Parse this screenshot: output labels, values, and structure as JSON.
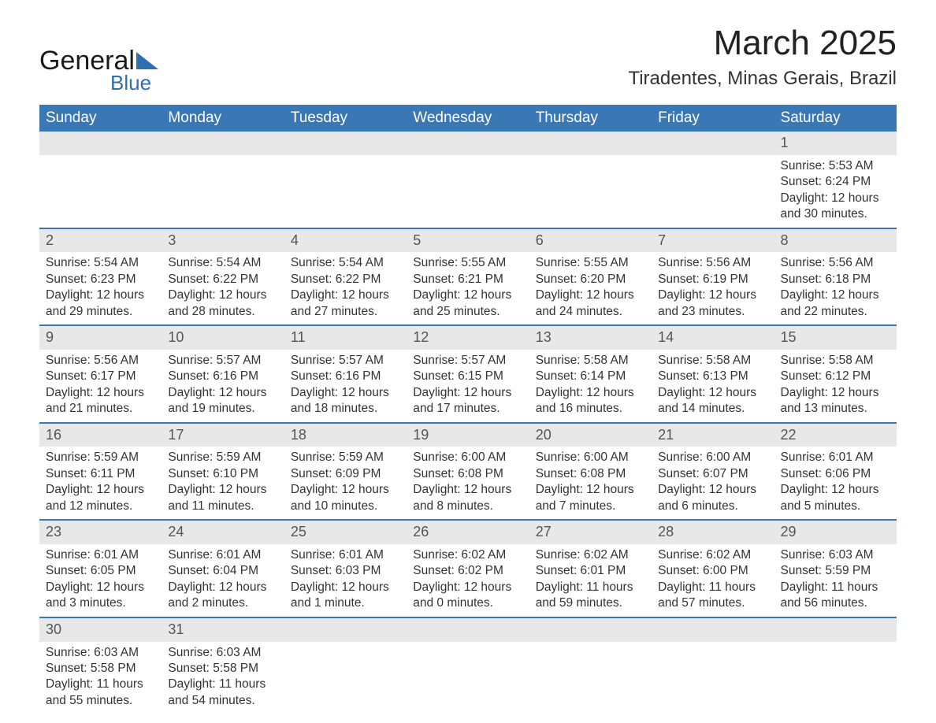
{
  "logo": {
    "brand1": "General",
    "brand2": "Blue"
  },
  "title": "March 2025",
  "location": "Tiradentes, Minas Gerais, Brazil",
  "colors": {
    "header_bg": "#3a78b5",
    "header_text": "#ffffff",
    "row_divider": "#3a78b5",
    "daynum_bg": "#e8e8e8",
    "text": "#333333",
    "logo_accent": "#2f6fb0"
  },
  "fonts": {
    "title_size_pt": 33,
    "location_size_pt": 18,
    "header_size_pt": 14,
    "body_size_pt": 12
  },
  "headers": [
    "Sunday",
    "Monday",
    "Tuesday",
    "Wednesday",
    "Thursday",
    "Friday",
    "Saturday"
  ],
  "weeks": [
    [
      null,
      null,
      null,
      null,
      null,
      null,
      {
        "n": "1",
        "sunrise": "Sunrise: 5:53 AM",
        "sunset": "Sunset: 6:24 PM",
        "day1": "Daylight: 12 hours",
        "day2": "and 30 minutes."
      }
    ],
    [
      {
        "n": "2",
        "sunrise": "Sunrise: 5:54 AM",
        "sunset": "Sunset: 6:23 PM",
        "day1": "Daylight: 12 hours",
        "day2": "and 29 minutes."
      },
      {
        "n": "3",
        "sunrise": "Sunrise: 5:54 AM",
        "sunset": "Sunset: 6:22 PM",
        "day1": "Daylight: 12 hours",
        "day2": "and 28 minutes."
      },
      {
        "n": "4",
        "sunrise": "Sunrise: 5:54 AM",
        "sunset": "Sunset: 6:22 PM",
        "day1": "Daylight: 12 hours",
        "day2": "and 27 minutes."
      },
      {
        "n": "5",
        "sunrise": "Sunrise: 5:55 AM",
        "sunset": "Sunset: 6:21 PM",
        "day1": "Daylight: 12 hours",
        "day2": "and 25 minutes."
      },
      {
        "n": "6",
        "sunrise": "Sunrise: 5:55 AM",
        "sunset": "Sunset: 6:20 PM",
        "day1": "Daylight: 12 hours",
        "day2": "and 24 minutes."
      },
      {
        "n": "7",
        "sunrise": "Sunrise: 5:56 AM",
        "sunset": "Sunset: 6:19 PM",
        "day1": "Daylight: 12 hours",
        "day2": "and 23 minutes."
      },
      {
        "n": "8",
        "sunrise": "Sunrise: 5:56 AM",
        "sunset": "Sunset: 6:18 PM",
        "day1": "Daylight: 12 hours",
        "day2": "and 22 minutes."
      }
    ],
    [
      {
        "n": "9",
        "sunrise": "Sunrise: 5:56 AM",
        "sunset": "Sunset: 6:17 PM",
        "day1": "Daylight: 12 hours",
        "day2": "and 21 minutes."
      },
      {
        "n": "10",
        "sunrise": "Sunrise: 5:57 AM",
        "sunset": "Sunset: 6:16 PM",
        "day1": "Daylight: 12 hours",
        "day2": "and 19 minutes."
      },
      {
        "n": "11",
        "sunrise": "Sunrise: 5:57 AM",
        "sunset": "Sunset: 6:16 PM",
        "day1": "Daylight: 12 hours",
        "day2": "and 18 minutes."
      },
      {
        "n": "12",
        "sunrise": "Sunrise: 5:57 AM",
        "sunset": "Sunset: 6:15 PM",
        "day1": "Daylight: 12 hours",
        "day2": "and 17 minutes."
      },
      {
        "n": "13",
        "sunrise": "Sunrise: 5:58 AM",
        "sunset": "Sunset: 6:14 PM",
        "day1": "Daylight: 12 hours",
        "day2": "and 16 minutes."
      },
      {
        "n": "14",
        "sunrise": "Sunrise: 5:58 AM",
        "sunset": "Sunset: 6:13 PM",
        "day1": "Daylight: 12 hours",
        "day2": "and 14 minutes."
      },
      {
        "n": "15",
        "sunrise": "Sunrise: 5:58 AM",
        "sunset": "Sunset: 6:12 PM",
        "day1": "Daylight: 12 hours",
        "day2": "and 13 minutes."
      }
    ],
    [
      {
        "n": "16",
        "sunrise": "Sunrise: 5:59 AM",
        "sunset": "Sunset: 6:11 PM",
        "day1": "Daylight: 12 hours",
        "day2": "and 12 minutes."
      },
      {
        "n": "17",
        "sunrise": "Sunrise: 5:59 AM",
        "sunset": "Sunset: 6:10 PM",
        "day1": "Daylight: 12 hours",
        "day2": "and 11 minutes."
      },
      {
        "n": "18",
        "sunrise": "Sunrise: 5:59 AM",
        "sunset": "Sunset: 6:09 PM",
        "day1": "Daylight: 12 hours",
        "day2": "and 10 minutes."
      },
      {
        "n": "19",
        "sunrise": "Sunrise: 6:00 AM",
        "sunset": "Sunset: 6:08 PM",
        "day1": "Daylight: 12 hours",
        "day2": "and 8 minutes."
      },
      {
        "n": "20",
        "sunrise": "Sunrise: 6:00 AM",
        "sunset": "Sunset: 6:08 PM",
        "day1": "Daylight: 12 hours",
        "day2": "and 7 minutes."
      },
      {
        "n": "21",
        "sunrise": "Sunrise: 6:00 AM",
        "sunset": "Sunset: 6:07 PM",
        "day1": "Daylight: 12 hours",
        "day2": "and 6 minutes."
      },
      {
        "n": "22",
        "sunrise": "Sunrise: 6:01 AM",
        "sunset": "Sunset: 6:06 PM",
        "day1": "Daylight: 12 hours",
        "day2": "and 5 minutes."
      }
    ],
    [
      {
        "n": "23",
        "sunrise": "Sunrise: 6:01 AM",
        "sunset": "Sunset: 6:05 PM",
        "day1": "Daylight: 12 hours",
        "day2": "and 3 minutes."
      },
      {
        "n": "24",
        "sunrise": "Sunrise: 6:01 AM",
        "sunset": "Sunset: 6:04 PM",
        "day1": "Daylight: 12 hours",
        "day2": "and 2 minutes."
      },
      {
        "n": "25",
        "sunrise": "Sunrise: 6:01 AM",
        "sunset": "Sunset: 6:03 PM",
        "day1": "Daylight: 12 hours",
        "day2": "and 1 minute."
      },
      {
        "n": "26",
        "sunrise": "Sunrise: 6:02 AM",
        "sunset": "Sunset: 6:02 PM",
        "day1": "Daylight: 12 hours",
        "day2": "and 0 minutes."
      },
      {
        "n": "27",
        "sunrise": "Sunrise: 6:02 AM",
        "sunset": "Sunset: 6:01 PM",
        "day1": "Daylight: 11 hours",
        "day2": "and 59 minutes."
      },
      {
        "n": "28",
        "sunrise": "Sunrise: 6:02 AM",
        "sunset": "Sunset: 6:00 PM",
        "day1": "Daylight: 11 hours",
        "day2": "and 57 minutes."
      },
      {
        "n": "29",
        "sunrise": "Sunrise: 6:03 AM",
        "sunset": "Sunset: 5:59 PM",
        "day1": "Daylight: 11 hours",
        "day2": "and 56 minutes."
      }
    ],
    [
      {
        "n": "30",
        "sunrise": "Sunrise: 6:03 AM",
        "sunset": "Sunset: 5:58 PM",
        "day1": "Daylight: 11 hours",
        "day2": "and 55 minutes."
      },
      {
        "n": "31",
        "sunrise": "Sunrise: 6:03 AM",
        "sunset": "Sunset: 5:58 PM",
        "day1": "Daylight: 11 hours",
        "day2": "and 54 minutes."
      },
      null,
      null,
      null,
      null,
      null
    ]
  ]
}
